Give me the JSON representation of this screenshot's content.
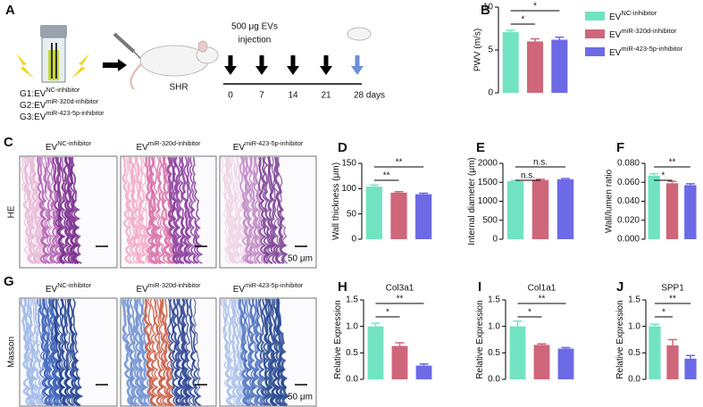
{
  "schematic": {
    "panel": "A",
    "dose_lines": [
      "500 μg EVs",
      "injection"
    ],
    "animal": "SHR",
    "groups": [
      {
        "prefix": "G1:EV",
        "sup": "NC-inhibitor"
      },
      {
        "prefix": "G2:EV",
        "sup": "miR-320d-inhibitor"
      },
      {
        "prefix": "G3:EV",
        "sup": "miR-423-5p-inhibitor"
      }
    ],
    "timeline": [
      "0",
      "7",
      "14",
      "21",
      "28 days"
    ]
  },
  "histology": [
    {
      "panel": "C",
      "stain": "HE",
      "scale": "50 μm",
      "columns": [
        {
          "base": "EV",
          "sup": "NC-inhibitor"
        },
        {
          "base": "EV",
          "sup": "miR-320d-inhibitor"
        },
        {
          "base": "EV",
          "sup": "miR-423-5p-inhibitor"
        }
      ]
    },
    {
      "panel": "G",
      "stain": "Masson",
      "scale": "50 μm",
      "columns": [
        {
          "base": "EV",
          "sup": "NC-inhibitor"
        },
        {
          "base": "EV",
          "sup": "miR-320d-inhibitor"
        },
        {
          "base": "EV",
          "sup": "miR-423-5p-inhibitor"
        }
      ]
    }
  ],
  "chart_data": [
    {
      "type": "bar",
      "panel": "B",
      "ylabel": "PWV (m/s)",
      "values": [
        7.1,
        6.0,
        6.2
      ],
      "errors": [
        0.2,
        0.3,
        0.3
      ],
      "colors": [
        "#72e3c2",
        "#cf6679",
        "#6d6ae6"
      ],
      "ylim": [
        0,
        10
      ],
      "yticks": [
        0,
        5,
        10
      ],
      "significance": [
        {
          "from": 0,
          "to": 1,
          "label": "*"
        },
        {
          "from": 0,
          "to": 2,
          "label": "*"
        }
      ],
      "legend": [
        {
          "base": "EV",
          "sup": "NC-inhibitor"
        },
        {
          "base": "EV",
          "sup": "miR-320d-inhibitor"
        },
        {
          "base": "EV",
          "sup": "miR-423-5p-inhibitor"
        }
      ]
    },
    {
      "type": "bar",
      "panel": "D",
      "ylabel": "Wall thickness (μm)",
      "values": [
        104,
        92,
        89
      ],
      "errors": [
        3,
        2,
        2
      ],
      "colors": [
        "#72e3c2",
        "#cf6679",
        "#6d6ae6"
      ],
      "ylim": [
        0,
        150
      ],
      "yticks": [
        0,
        50,
        100,
        150
      ],
      "significance": [
        {
          "from": 0,
          "to": 1,
          "label": "**"
        },
        {
          "from": 0,
          "to": 2,
          "label": "**"
        }
      ]
    },
    {
      "type": "bar",
      "panel": "E",
      "ylabel": "Internal diameter (μm)",
      "values": [
        1530,
        1560,
        1580
      ],
      "errors": [
        20,
        20,
        20
      ],
      "colors": [
        "#72e3c2",
        "#cf6679",
        "#6d6ae6"
      ],
      "ylim": [
        0,
        2000
      ],
      "yticks": [
        0,
        500,
        1000,
        1500,
        2000
      ],
      "significance": [
        {
          "from": 0,
          "to": 1,
          "label": "n.s."
        },
        {
          "from": 0,
          "to": 2,
          "label": "n.s."
        }
      ]
    },
    {
      "type": "bar",
      "panel": "F",
      "ylabel": "Wall/lumen ratio",
      "values": [
        0.067,
        0.059,
        0.057
      ],
      "errors": [
        0.002,
        0.002,
        0.0015
      ],
      "colors": [
        "#72e3c2",
        "#cf6679",
        "#6d6ae6"
      ],
      "ylim": [
        0,
        0.08
      ],
      "yticks": [
        {
          "value": 0,
          "label": "0.000"
        },
        {
          "value": 0.02,
          "label": "0.020"
        },
        {
          "value": 0.04,
          "label": "0.040"
        },
        {
          "value": 0.06,
          "label": "0.060"
        },
        {
          "value": 0.08,
          "label": "0.080"
        }
      ],
      "significance": [
        {
          "from": 0,
          "to": 1,
          "label": "*"
        },
        {
          "from": 0,
          "to": 2,
          "label": "**"
        }
      ]
    },
    {
      "type": "bar",
      "panel": "H",
      "title": "Col3a1",
      "ylabel": "Relative Expression",
      "values": [
        1.0,
        0.63,
        0.26
      ],
      "errors": [
        0.06,
        0.06,
        0.03
      ],
      "colors": [
        "#72e3c2",
        "#cf6679",
        "#6d6ae6"
      ],
      "ylim": [
        0,
        1.5
      ],
      "yticks": [
        {
          "value": 0,
          "label": "0.0"
        },
        {
          "value": 0.5,
          "label": "0.5"
        },
        {
          "value": 1,
          "label": "1.0"
        },
        {
          "value": 1.5,
          "label": "1.5"
        }
      ],
      "significance": [
        {
          "from": 0,
          "to": 1,
          "label": "*"
        },
        {
          "from": 0,
          "to": 2,
          "label": "**"
        }
      ]
    },
    {
      "type": "bar",
      "panel": "I",
      "title": "Col1a1",
      "ylabel": "Relative Expression",
      "values": [
        1.0,
        0.65,
        0.58
      ],
      "errors": [
        0.1,
        0.02,
        0.02
      ],
      "colors": [
        "#72e3c2",
        "#cf6679",
        "#6d6ae6"
      ],
      "ylim": [
        0,
        1.5
      ],
      "yticks": [
        {
          "value": 0,
          "label": "0.0"
        },
        {
          "value": 0.5,
          "label": "0.5"
        },
        {
          "value": 1,
          "label": "1.0"
        },
        {
          "value": 1.5,
          "label": "1.5"
        }
      ],
      "significance": [
        {
          "from": 0,
          "to": 1,
          "label": "*"
        },
        {
          "from": 0,
          "to": 2,
          "label": "**"
        }
      ]
    },
    {
      "type": "bar",
      "panel": "J",
      "title": "SPP1",
      "ylabel": "Relative Expression",
      "values": [
        1.0,
        0.64,
        0.39
      ],
      "errors": [
        0.04,
        0.11,
        0.06
      ],
      "colors": [
        "#72e3c2",
        "#cf6679",
        "#6d6ae6"
      ],
      "ylim": [
        0,
        1.5
      ],
      "yticks": [
        {
          "value": 0,
          "label": "0.0"
        },
        {
          "value": 0.5,
          "label": "0.5"
        },
        {
          "value": 1,
          "label": "1.0"
        },
        {
          "value": 1.5,
          "label": "1.5"
        }
      ],
      "significance": [
        {
          "from": 0,
          "to": 1,
          "label": "*"
        },
        {
          "from": 0,
          "to": 2,
          "label": "**"
        }
      ]
    }
  ]
}
